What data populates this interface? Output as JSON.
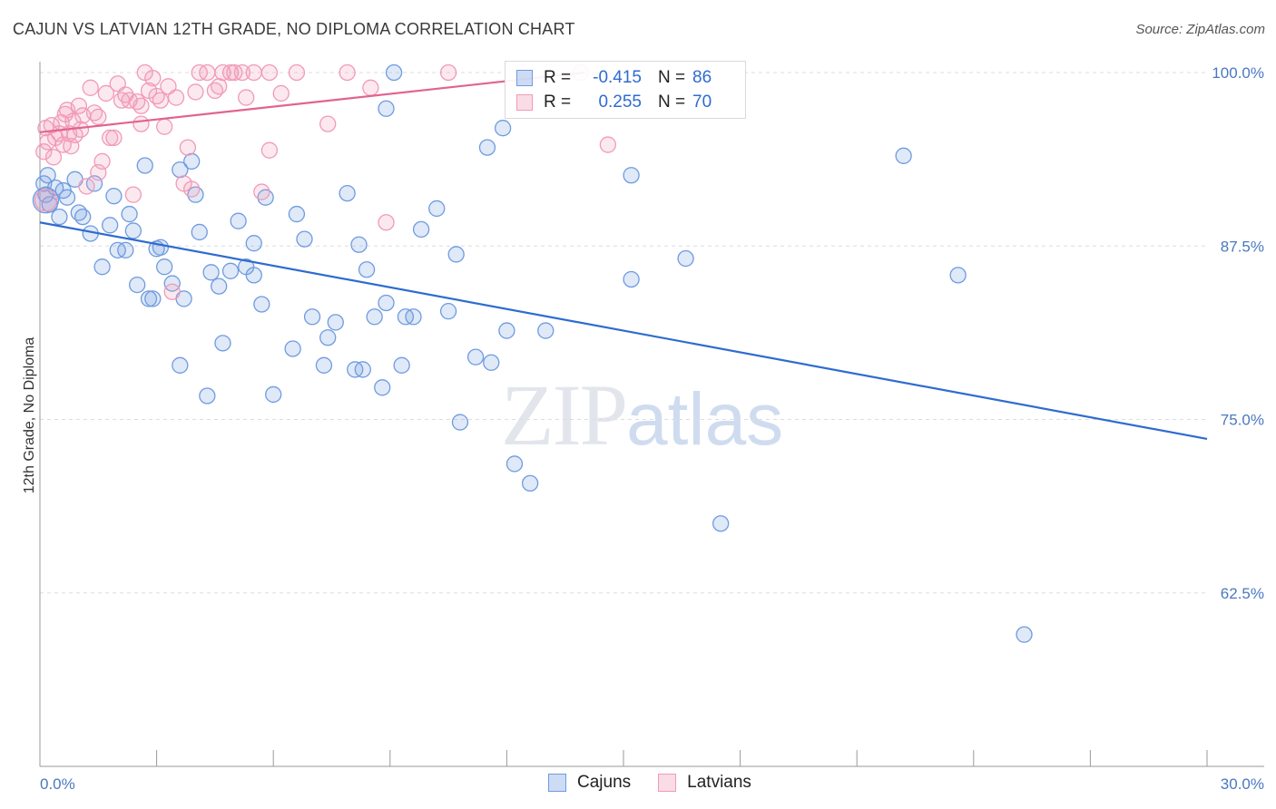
{
  "header": {
    "title": "CAJUN VS LATVIAN 12TH GRADE, NO DIPLOMA CORRELATION CHART",
    "source": "Source: ZipAtlas.com"
  },
  "watermark": {
    "zip": "ZIP",
    "atlas": "atlas"
  },
  "legend": {
    "rows": [
      {
        "r_label": "R =",
        "r_value": "-0.415",
        "n_label": "N =",
        "n_value": "86",
        "color": "#6f9be0"
      },
      {
        "r_label": "R =",
        "r_value": "0.255",
        "n_label": "N =",
        "n_value": "70",
        "color": "#f19ab8"
      }
    ]
  },
  "bottom_legend": [
    {
      "label": "Cajuns",
      "color": "#6f9be0"
    },
    {
      "label": "Latvians",
      "color": "#f19ab8"
    }
  ],
  "chart_data": {
    "type": "scatter",
    "title": "CAJUN VS LATVIAN 12TH GRADE, NO DIPLOMA CORRELATION CHART",
    "xlabel": "",
    "ylabel": "12th Grade, No Diploma",
    "xlim": [
      0,
      30
    ],
    "ylim": [
      50,
      100
    ],
    "x_tick_labels": [
      "0.0%",
      "30.0%"
    ],
    "y_ticks": [
      62.5,
      75.0,
      87.5,
      100.0
    ],
    "y_tick_labels": [
      "62.5%",
      "75.0%",
      "87.5%",
      "100.0%"
    ],
    "grid": true,
    "legend_position": "top-center",
    "series": [
      {
        "name": "Cajuns",
        "color": "#6f9be0",
        "trend": {
          "x": [
            0,
            30
          ],
          "y": [
            89.2,
            73.6
          ]
        },
        "points": [
          [
            0.2,
            92.6
          ],
          [
            0.4,
            91.7
          ],
          [
            0.5,
            89.6
          ],
          [
            0.6,
            91.5
          ],
          [
            0.7,
            91.0
          ],
          [
            0.9,
            92.3
          ],
          [
            1.0,
            89.9
          ],
          [
            1.1,
            89.6
          ],
          [
            1.3,
            88.4
          ],
          [
            1.4,
            92.0
          ],
          [
            1.6,
            86.0
          ],
          [
            1.8,
            89.0
          ],
          [
            1.9,
            91.1
          ],
          [
            2.0,
            87.2
          ],
          [
            2.2,
            87.2
          ],
          [
            2.3,
            89.8
          ],
          [
            2.4,
            88.6
          ],
          [
            2.5,
            84.7
          ],
          [
            2.7,
            93.3
          ],
          [
            2.8,
            83.7
          ],
          [
            2.9,
            83.7
          ],
          [
            3.0,
            87.3
          ],
          [
            3.1,
            87.4
          ],
          [
            3.2,
            86.0
          ],
          [
            3.4,
            84.8
          ],
          [
            3.7,
            83.7
          ],
          [
            3.6,
            93.0
          ],
          [
            3.6,
            78.9
          ],
          [
            3.9,
            93.6
          ],
          [
            4.0,
            91.2
          ],
          [
            4.1,
            88.5
          ],
          [
            4.3,
            76.7
          ],
          [
            4.4,
            85.6
          ],
          [
            4.6,
            84.6
          ],
          [
            4.7,
            80.5
          ],
          [
            4.9,
            85.7
          ],
          [
            5.1,
            89.3
          ],
          [
            5.3,
            86.0
          ],
          [
            5.5,
            87.7
          ],
          [
            5.5,
            85.4
          ],
          [
            5.7,
            83.3
          ],
          [
            5.8,
            91.0
          ],
          [
            6.0,
            76.8
          ],
          [
            6.5,
            80.1
          ],
          [
            6.6,
            89.8
          ],
          [
            6.8,
            88.0
          ],
          [
            7.0,
            82.4
          ],
          [
            7.3,
            78.9
          ],
          [
            7.4,
            80.9
          ],
          [
            7.6,
            82.0
          ],
          [
            7.9,
            91.3
          ],
          [
            8.1,
            78.6
          ],
          [
            8.2,
            87.6
          ],
          [
            8.3,
            78.6
          ],
          [
            8.4,
            85.8
          ],
          [
            8.6,
            82.4
          ],
          [
            8.8,
            77.3
          ],
          [
            8.9,
            97.4
          ],
          [
            8.9,
            83.4
          ],
          [
            9.1,
            100.0
          ],
          [
            9.3,
            78.9
          ],
          [
            9.4,
            82.4
          ],
          [
            9.6,
            82.4
          ],
          [
            9.8,
            88.7
          ],
          [
            10.2,
            90.2
          ],
          [
            10.5,
            82.8
          ],
          [
            10.7,
            86.9
          ],
          [
            10.8,
            74.8
          ],
          [
            11.2,
            79.5
          ],
          [
            11.5,
            94.6
          ],
          [
            11.6,
            79.1
          ],
          [
            11.9,
            96.0
          ],
          [
            12.0,
            81.4
          ],
          [
            12.2,
            71.8
          ],
          [
            12.6,
            70.4
          ],
          [
            13.0,
            81.4
          ],
          [
            15.2,
            92.6
          ],
          [
            15.2,
            85.1
          ],
          [
            16.6,
            86.6
          ],
          [
            17.5,
            67.5
          ],
          [
            22.2,
            94.0
          ],
          [
            23.6,
            85.4
          ],
          [
            25.3,
            59.5
          ],
          [
            0.1,
            92.0
          ],
          [
            0.15,
            91.2
          ],
          [
            0.25,
            90.5
          ]
        ]
      },
      {
        "name": "Latvians",
        "color": "#f19ab8",
        "trend": {
          "x": [
            0,
            14
          ],
          "y": [
            95.7,
            100.0
          ]
        },
        "points": [
          [
            0.1,
            94.3
          ],
          [
            0.2,
            95.0
          ],
          [
            0.3,
            96.2
          ],
          [
            0.4,
            95.3
          ],
          [
            0.5,
            95.6
          ],
          [
            0.6,
            94.8
          ],
          [
            0.7,
            97.3
          ],
          [
            0.8,
            94.7
          ],
          [
            0.9,
            95.5
          ],
          [
            1.0,
            97.6
          ],
          [
            1.1,
            96.9
          ],
          [
            1.2,
            91.8
          ],
          [
            1.3,
            98.9
          ],
          [
            1.4,
            97.1
          ],
          [
            1.5,
            96.8
          ],
          [
            1.5,
            92.8
          ],
          [
            1.6,
            93.6
          ],
          [
            1.7,
            98.5
          ],
          [
            1.8,
            95.3
          ],
          [
            1.9,
            95.3
          ],
          [
            2.0,
            99.2
          ],
          [
            2.1,
            98.0
          ],
          [
            2.2,
            98.4
          ],
          [
            2.3,
            98.0
          ],
          [
            2.4,
            91.2
          ],
          [
            2.5,
            97.9
          ],
          [
            2.6,
            96.3
          ],
          [
            2.6,
            97.6
          ],
          [
            2.7,
            100.0
          ],
          [
            2.8,
            98.7
          ],
          [
            2.9,
            99.6
          ],
          [
            3.0,
            98.3
          ],
          [
            3.1,
            98.0
          ],
          [
            3.2,
            96.1
          ],
          [
            3.3,
            99.0
          ],
          [
            3.4,
            84.2
          ],
          [
            3.5,
            98.2
          ],
          [
            3.7,
            92.0
          ],
          [
            3.8,
            94.6
          ],
          [
            3.9,
            91.6
          ],
          [
            4.0,
            98.6
          ],
          [
            4.1,
            100.0
          ],
          [
            4.3,
            100.0
          ],
          [
            4.5,
            98.7
          ],
          [
            4.6,
            99.0
          ],
          [
            4.7,
            100.0
          ],
          [
            4.9,
            100.0
          ],
          [
            5.0,
            100.0
          ],
          [
            5.2,
            100.0
          ],
          [
            5.3,
            98.2
          ],
          [
            5.5,
            100.0
          ],
          [
            5.7,
            91.4
          ],
          [
            5.9,
            94.4
          ],
          [
            5.9,
            100.0
          ],
          [
            6.2,
            98.5
          ],
          [
            6.6,
            100.0
          ],
          [
            7.4,
            96.3
          ],
          [
            7.9,
            100.0
          ],
          [
            8.5,
            98.9
          ],
          [
            8.9,
            89.2
          ],
          [
            10.5,
            100.0
          ],
          [
            13.9,
            100.0
          ],
          [
            14.6,
            94.8
          ],
          [
            0.15,
            96.0
          ],
          [
            0.35,
            93.9
          ],
          [
            0.55,
            96.4
          ],
          [
            0.65,
            97.0
          ],
          [
            0.75,
            95.6
          ],
          [
            0.85,
            96.5
          ],
          [
            1.05,
            95.9
          ]
        ]
      }
    ]
  }
}
